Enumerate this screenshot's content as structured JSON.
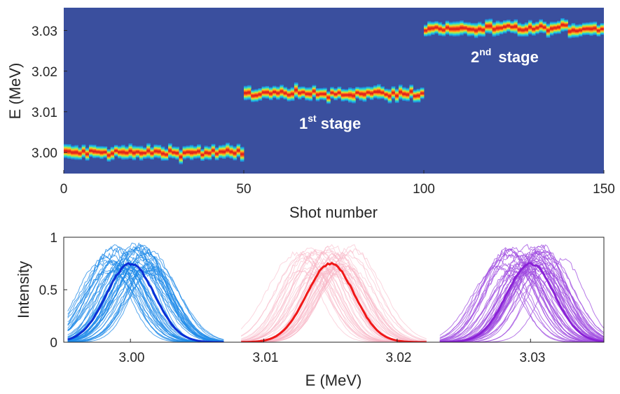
{
  "chart_data": [
    {
      "type": "heatmap",
      "xlabel": "Shot number",
      "ylabel": "E (MeV)",
      "xlim": [
        0,
        150
      ],
      "ylim": [
        2.9948,
        3.0356
      ],
      "x_ticks": [
        "0",
        "50",
        "100",
        "150"
      ],
      "y_ticks": [
        "3.00",
        "3.01",
        "3.02",
        "3.03"
      ],
      "background_color": "#3a4f9e",
      "colormap": [
        "#3a4f9e",
        "#1f8fd8",
        "#2ad1d8",
        "#9be35a",
        "#ffd21f",
        "#ff7a1a",
        "#e2281c"
      ],
      "stages": [
        {
          "shots": [
            1,
            50
          ],
          "center_mev": 3.0,
          "jitter_mev": 0.0008
        },
        {
          "shots": [
            51,
            100
          ],
          "center_mev": 3.0145,
          "jitter_mev": 0.0008
        },
        {
          "shots": [
            101,
            150
          ],
          "center_mev": 3.0305,
          "jitter_mev": 0.0008
        }
      ],
      "annotations": [
        {
          "main": "1",
          "sup": "st",
          "text": "stage",
          "at_shot": 64,
          "at_mev": 3.0072
        },
        {
          "main": "2",
          "sup": "nd",
          "text": "stage",
          "at_shot": 114,
          "at_mev": 3.0213
        }
      ]
    },
    {
      "type": "line",
      "xlabel": "E (MeV)",
      "ylabel": "Intensity",
      "xlim": [
        2.995,
        3.0355
      ],
      "ylim": [
        0,
        1
      ],
      "x_ticks": [
        "3.00",
        "3.01",
        "3.02",
        "3.03"
      ],
      "y_ticks": [
        "0",
        "0.5",
        "1"
      ],
      "series": [
        {
          "center": 3.0,
          "mean_peak": 0.75,
          "sigma": 0.0018,
          "range": [
            2.9953,
            3.007
          ],
          "shots": 50,
          "color_mean": "#0a2fd6",
          "color_shots": "#1e8ae8"
        },
        {
          "center": 3.015,
          "mean_peak": 0.75,
          "sigma": 0.0018,
          "range": [
            3.0083,
            3.0222
          ],
          "shots": 50,
          "color_mean": "#f01818",
          "color_shots": "#f8b4c4"
        },
        {
          "center": 3.03,
          "mean_peak": 0.75,
          "sigma": 0.0018,
          "range": [
            3.0232,
            3.0355
          ],
          "shots": 50,
          "color_mean": "#8a22d6",
          "color_shots": "#a04ee0"
        }
      ]
    }
  ]
}
